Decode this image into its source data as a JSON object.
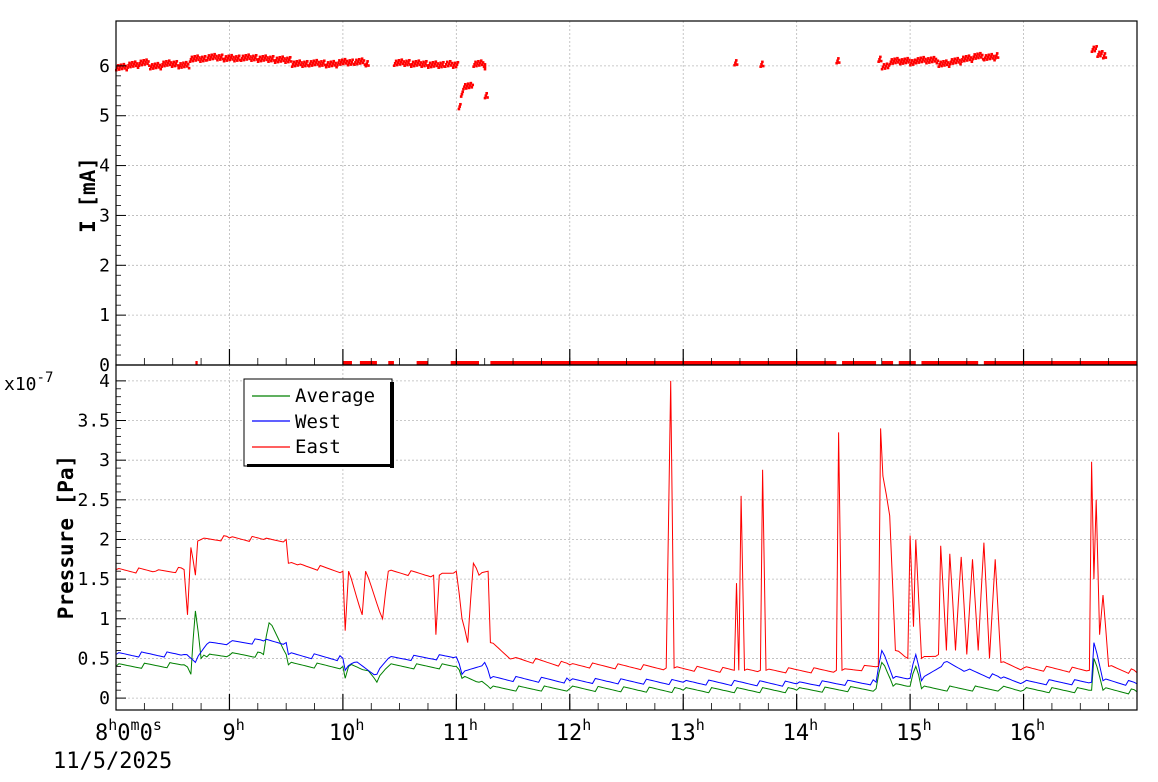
{
  "chart_data": [
    {
      "type": "scatter",
      "name": "current-panel",
      "ylabel": "I [mA]",
      "ylim": [
        0,
        6.9
      ],
      "yticks": [
        0,
        1,
        2,
        3,
        4,
        5,
        6
      ],
      "grid": true,
      "series": [
        {
          "color": "#ff0000",
          "points": [
            [
              8.0,
              5.98
            ],
            [
              8.1,
              6.03
            ],
            [
              8.2,
              6.07
            ],
            [
              8.3,
              6.0
            ],
            [
              8.4,
              6.05
            ],
            [
              8.55,
              6.02
            ],
            [
              8.65,
              6.15
            ],
            [
              8.8,
              6.18
            ],
            [
              8.95,
              6.16
            ],
            [
              9.1,
              6.17
            ],
            [
              9.25,
              6.15
            ],
            [
              9.4,
              6.13
            ],
            [
              9.55,
              6.05
            ],
            [
              9.7,
              6.06
            ],
            [
              9.85,
              6.04
            ],
            [
              9.95,
              6.08
            ],
            [
              10.1,
              6.09
            ],
            [
              10.2,
              6.06
            ],
            [
              10.45,
              6.07
            ],
            [
              10.6,
              6.05
            ],
            [
              10.75,
              6.03
            ],
            [
              10.9,
              6.05
            ],
            [
              10.97,
              6.03
            ],
            [
              11.02,
              5.2
            ],
            [
              11.04,
              5.45
            ],
            [
              11.06,
              5.6
            ],
            [
              11.15,
              6.05
            ],
            [
              11.25,
              6.0
            ],
            [
              11.25,
              5.42
            ],
            [
              13.45,
              6.08
            ],
            [
              13.68,
              6.05
            ],
            [
              14.35,
              6.12
            ],
            [
              14.72,
              6.15
            ],
            [
              14.75,
              6.0
            ],
            [
              14.82,
              6.1
            ],
            [
              15.0,
              6.08
            ],
            [
              15.05,
              6.12
            ],
            [
              15.25,
              6.05
            ],
            [
              15.35,
              6.1
            ],
            [
              15.45,
              6.15
            ],
            [
              15.55,
              6.2
            ],
            [
              15.65,
              6.18
            ],
            [
              15.75,
              6.22
            ],
            [
              16.6,
              6.35
            ],
            [
              16.65,
              6.25
            ],
            [
              16.7,
              6.22
            ]
          ]
        },
        {
          "color": "#ff0000",
          "segments": [
            [
              8.7,
              8.72
            ],
            [
              10.0,
              10.08
            ],
            [
              10.15,
              10.3
            ],
            [
              10.4,
              10.45
            ],
            [
              10.65,
              10.75
            ],
            [
              10.95,
              11.2
            ],
            [
              11.3,
              14.35
            ],
            [
              14.4,
              14.7
            ],
            [
              14.75,
              14.85
            ],
            [
              14.9,
              15.05
            ],
            [
              15.1,
              15.6
            ],
            [
              15.65,
              17.0
            ]
          ],
          "y": 0.02
        }
      ]
    },
    {
      "type": "line",
      "name": "pressure-panel",
      "ylabel": "Pressure [Pa]",
      "yexponent": "x10",
      "yexponent_power": "-7",
      "ylim": [
        -0.15,
        4.2
      ],
      "yticks": [
        0,
        0.5,
        1,
        1.5,
        2,
        2.5,
        3,
        3.5,
        4
      ],
      "ytick_labels": [
        "0",
        "0.5",
        "1",
        "1.5",
        "2",
        "2.5",
        "3",
        "3.5",
        "4"
      ],
      "x_start_label_main": "8",
      "x_start_label_sup1": "h",
      "x_start_label_mid1": "0",
      "x_start_label_sup2": "m",
      "x_start_label_mid2": "0",
      "x_start_label_sup3": "s",
      "x_date_label": "11/5/2025",
      "xlim": [
        8.0,
        17.0
      ],
      "xticks": [
        {
          "value": 9,
          "main": "9",
          "sup": "h"
        },
        {
          "value": 10,
          "main": "10",
          "sup": "h"
        },
        {
          "value": 11,
          "main": "11",
          "sup": "h"
        },
        {
          "value": 12,
          "main": "12",
          "sup": "h"
        },
        {
          "value": 13,
          "main": "13",
          "sup": "h"
        },
        {
          "value": 14,
          "main": "14",
          "sup": "h"
        },
        {
          "value": 15,
          "main": "15",
          "sup": "h"
        },
        {
          "value": 16,
          "main": "16",
          "sup": "h"
        }
      ],
      "legend_position": "top-left",
      "grid": true,
      "series": [
        {
          "name": "Average",
          "color": "#008000",
          "points": [
            [
              8.0,
              0.4
            ],
            [
              8.6,
              0.42
            ],
            [
              8.66,
              0.3
            ],
            [
              8.7,
              1.1
            ],
            [
              8.75,
              0.5
            ],
            [
              8.8,
              0.52
            ],
            [
              9.0,
              0.54
            ],
            [
              9.3,
              0.55
            ],
            [
              9.35,
              0.95
            ],
            [
              9.5,
              0.55
            ],
            [
              9.52,
              0.42
            ],
            [
              10.0,
              0.4
            ],
            [
              10.02,
              0.25
            ],
            [
              10.05,
              0.4
            ],
            [
              10.2,
              0.35
            ],
            [
              10.3,
              0.2
            ],
            [
              10.4,
              0.4
            ],
            [
              11.0,
              0.4
            ],
            [
              11.05,
              0.25
            ],
            [
              11.2,
              0.2
            ],
            [
              11.3,
              0.12
            ],
            [
              12.0,
              0.12
            ],
            [
              13.0,
              0.1
            ],
            [
              14.0,
              0.1
            ],
            [
              14.7,
              0.12
            ],
            [
              14.75,
              0.45
            ],
            [
              14.85,
              0.15
            ],
            [
              15.0,
              0.15
            ],
            [
              15.05,
              0.4
            ],
            [
              15.1,
              0.12
            ],
            [
              15.8,
              0.12
            ],
            [
              16.0,
              0.1
            ],
            [
              16.6,
              0.1
            ],
            [
              16.62,
              0.5
            ],
            [
              16.7,
              0.1
            ],
            [
              17.0,
              0.08
            ]
          ]
        },
        {
          "name": "West",
          "color": "#0000ff",
          "points": [
            [
              8.0,
              0.55
            ],
            [
              8.6,
              0.55
            ],
            [
              8.7,
              0.45
            ],
            [
              8.8,
              0.68
            ],
            [
              9.0,
              0.7
            ],
            [
              9.3,
              0.72
            ],
            [
              9.5,
              0.7
            ],
            [
              9.52,
              0.55
            ],
            [
              10.0,
              0.5
            ],
            [
              10.02,
              0.35
            ],
            [
              10.1,
              0.45
            ],
            [
              10.3,
              0.3
            ],
            [
              10.4,
              0.5
            ],
            [
              11.0,
              0.52
            ],
            [
              11.05,
              0.3
            ],
            [
              11.25,
              0.45
            ],
            [
              11.3,
              0.25
            ],
            [
              12.0,
              0.22
            ],
            [
              13.0,
              0.2
            ],
            [
              14.0,
              0.18
            ],
            [
              14.7,
              0.2
            ],
            [
              14.75,
              0.6
            ],
            [
              14.85,
              0.25
            ],
            [
              15.0,
              0.25
            ],
            [
              15.05,
              0.55
            ],
            [
              15.1,
              0.22
            ],
            [
              15.3,
              0.45
            ],
            [
              15.5,
              0.35
            ],
            [
              15.8,
              0.25
            ],
            [
              16.0,
              0.2
            ],
            [
              16.6,
              0.2
            ],
            [
              16.62,
              0.7
            ],
            [
              16.7,
              0.22
            ],
            [
              17.0,
              0.18
            ]
          ]
        },
        {
          "name": "East",
          "color": "#ff0000",
          "points": [
            [
              8.0,
              1.62
            ],
            [
              8.35,
              1.6
            ],
            [
              8.6,
              1.62
            ],
            [
              8.63,
              1.05
            ],
            [
              8.66,
              1.9
            ],
            [
              8.7,
              1.55
            ],
            [
              8.72,
              1.98
            ],
            [
              8.75,
              2.0
            ],
            [
              9.0,
              2.02
            ],
            [
              9.3,
              2.0
            ],
            [
              9.5,
              2.0
            ],
            [
              9.52,
              1.7
            ],
            [
              9.6,
              1.68
            ],
            [
              10.0,
              1.6
            ],
            [
              10.02,
              0.85
            ],
            [
              10.05,
              1.6
            ],
            [
              10.17,
              1.05
            ],
            [
              10.2,
              1.6
            ],
            [
              10.35,
              1.0
            ],
            [
              10.4,
              1.6
            ],
            [
              10.8,
              1.55
            ],
            [
              10.82,
              0.8
            ],
            [
              10.85,
              1.55
            ],
            [
              11.0,
              1.6
            ],
            [
              11.05,
              1.0
            ],
            [
              11.1,
              0.7
            ],
            [
              11.15,
              1.7
            ],
            [
              11.2,
              1.55
            ],
            [
              11.28,
              1.6
            ],
            [
              11.3,
              0.7
            ],
            [
              11.5,
              0.5
            ],
            [
              12.0,
              0.42
            ],
            [
              12.85,
              0.38
            ],
            [
              12.89,
              4.0
            ],
            [
              12.92,
              0.38
            ],
            [
              13.45,
              0.35
            ],
            [
              13.47,
              1.45
            ],
            [
              13.49,
              0.35
            ],
            [
              13.51,
              2.55
            ],
            [
              13.54,
              0.35
            ],
            [
              13.68,
              0.35
            ],
            [
              13.7,
              2.88
            ],
            [
              13.73,
              0.35
            ],
            [
              14.35,
              0.35
            ],
            [
              14.37,
              3.35
            ],
            [
              14.4,
              0.35
            ],
            [
              14.72,
              0.4
            ],
            [
              14.74,
              3.4
            ],
            [
              14.76,
              2.8
            ],
            [
              14.82,
              2.3
            ],
            [
              14.87,
              0.6
            ],
            [
              14.98,
              0.5
            ],
            [
              15.0,
              2.05
            ],
            [
              15.03,
              0.9
            ],
            [
              15.05,
              2.0
            ],
            [
              15.1,
              0.5
            ],
            [
              15.25,
              0.55
            ],
            [
              15.27,
              1.92
            ],
            [
              15.32,
              0.6
            ],
            [
              15.35,
              1.82
            ],
            [
              15.4,
              0.6
            ],
            [
              15.45,
              1.78
            ],
            [
              15.5,
              0.55
            ],
            [
              15.55,
              1.75
            ],
            [
              15.6,
              0.6
            ],
            [
              15.65,
              1.96
            ],
            [
              15.7,
              0.5
            ],
            [
              15.75,
              1.75
            ],
            [
              15.8,
              0.45
            ],
            [
              16.0,
              0.38
            ],
            [
              16.58,
              0.35
            ],
            [
              16.6,
              2.98
            ],
            [
              16.62,
              1.5
            ],
            [
              16.64,
              2.5
            ],
            [
              16.67,
              0.8
            ],
            [
              16.7,
              1.3
            ],
            [
              16.75,
              0.4
            ],
            [
              17.0,
              0.32
            ]
          ]
        }
      ]
    }
  ]
}
